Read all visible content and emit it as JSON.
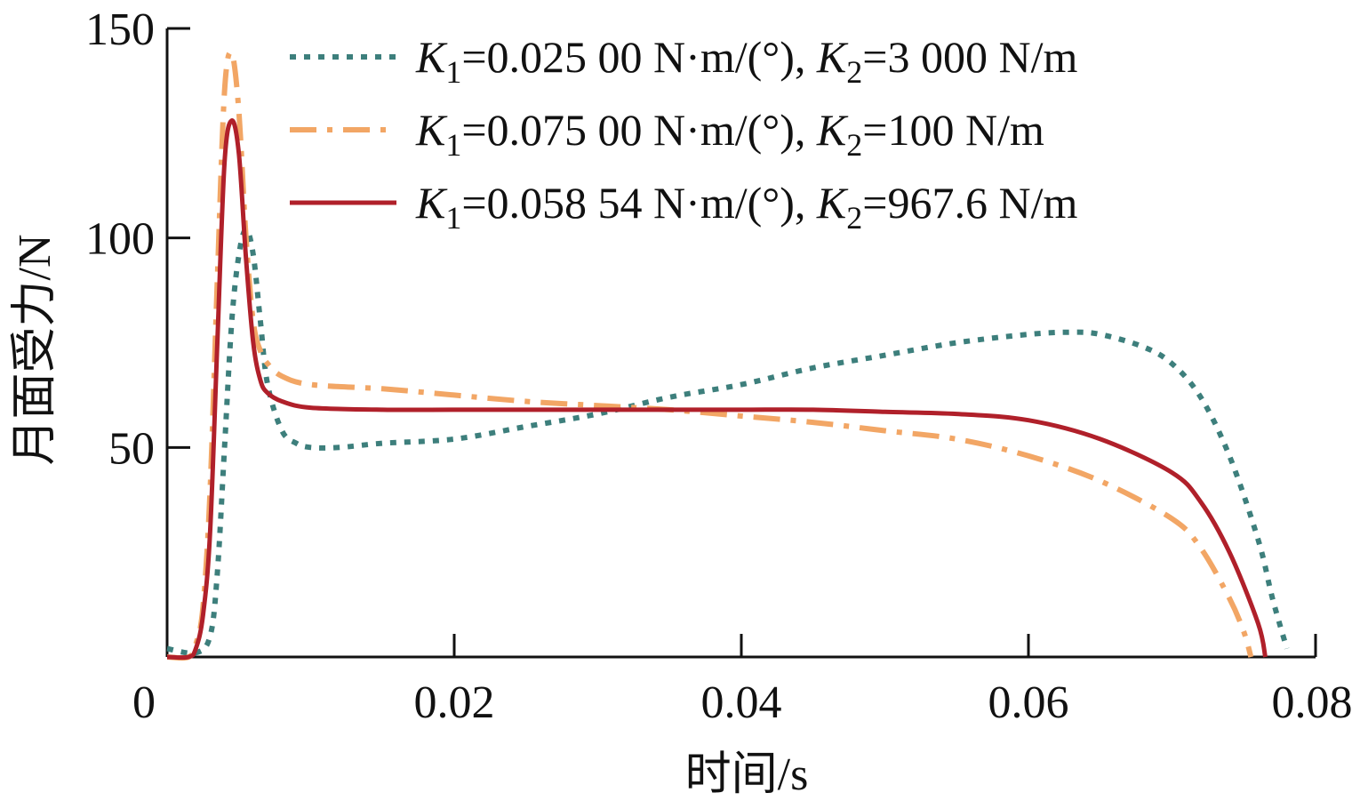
{
  "chart_data": {
    "type": "line",
    "xlabel": "时间/s",
    "ylabel": "月面受力/N",
    "xlim": [
      0,
      0.08
    ],
    "ylim": [
      0,
      150
    ],
    "x_ticks": [
      0,
      0.02,
      0.04,
      0.06,
      0.08
    ],
    "x_tick_labels": [
      "0",
      "0.02",
      "0.04",
      "0.06",
      "0.08"
    ],
    "y_ticks": [
      50,
      100,
      150
    ],
    "y_tick_labels": [
      "50",
      "100",
      "150"
    ],
    "grid": false,
    "legend_position": "top-right",
    "series": [
      {
        "name": "K1=0.025 00 N·m/(°), K2=3 000 N/m",
        "legend": {
          "k1": "0.025 00",
          "k2": "3 000"
        },
        "color": "#3d7f7c",
        "style": "dotted",
        "x": [
          0,
          0.002,
          0.003,
          0.0035,
          0.004,
          0.0045,
          0.005,
          0.0055,
          0.006,
          0.0065,
          0.007,
          0.008,
          0.009,
          0.01,
          0.012,
          0.015,
          0.02,
          0.025,
          0.03,
          0.035,
          0.04,
          0.045,
          0.05,
          0.055,
          0.06,
          0.063,
          0.065,
          0.068,
          0.07,
          0.072,
          0.074,
          0.076,
          0.077,
          0.078
        ],
        "values": [
          2,
          1,
          5,
          20,
          50,
          80,
          96,
          102,
          96,
          80,
          65,
          54,
          51,
          50,
          50,
          51,
          52,
          55,
          58,
          62,
          65,
          69,
          72,
          75,
          77,
          77.5,
          77,
          74,
          70,
          62,
          48,
          28,
          14,
          2
        ]
      },
      {
        "name": "K1=0.075 00 N·m/(°), K2=100 N/m",
        "legend": {
          "k1": "0.075 00",
          "k2": "100"
        },
        "color": "#f2a665",
        "style": "dashdot",
        "x": [
          0,
          0.0015,
          0.002,
          0.0025,
          0.003,
          0.0035,
          0.004,
          0.0045,
          0.005,
          0.0055,
          0.006,
          0.0065,
          0.007,
          0.008,
          0.01,
          0.015,
          0.02,
          0.025,
          0.03,
          0.035,
          0.04,
          0.045,
          0.05,
          0.055,
          0.06,
          0.065,
          0.07,
          0.072,
          0.074,
          0.075,
          0.0755
        ],
        "values": [
          0,
          0,
          3,
          12,
          40,
          90,
          135,
          144,
          130,
          100,
          80,
          73,
          70,
          67,
          65,
          64,
          62.5,
          61,
          60,
          59,
          57.5,
          56,
          54,
          52,
          48,
          42,
          33,
          26,
          14,
          6,
          0
        ]
      },
      {
        "name": "K1=0.058 54 N·m/(°), K2=967.6 N/m",
        "legend": {
          "k1": "0.058 54",
          "k2": "967.6"
        },
        "color": "#b0202a",
        "style": "solid",
        "x": [
          0,
          0.0015,
          0.002,
          0.0025,
          0.003,
          0.0035,
          0.004,
          0.0045,
          0.005,
          0.0055,
          0.006,
          0.0065,
          0.007,
          0.008,
          0.01,
          0.015,
          0.02,
          0.025,
          0.03,
          0.035,
          0.04,
          0.045,
          0.05,
          0.055,
          0.06,
          0.065,
          0.07,
          0.072,
          0.074,
          0.076,
          0.0765
        ],
        "values": [
          0,
          0,
          2,
          10,
          30,
          75,
          118,
          128,
          120,
          95,
          75,
          66,
          63,
          61,
          59.5,
          59,
          59,
          59,
          59,
          59,
          59,
          59,
          58.5,
          58,
          56.5,
          52,
          44,
          37,
          25,
          8,
          0
        ]
      }
    ]
  }
}
